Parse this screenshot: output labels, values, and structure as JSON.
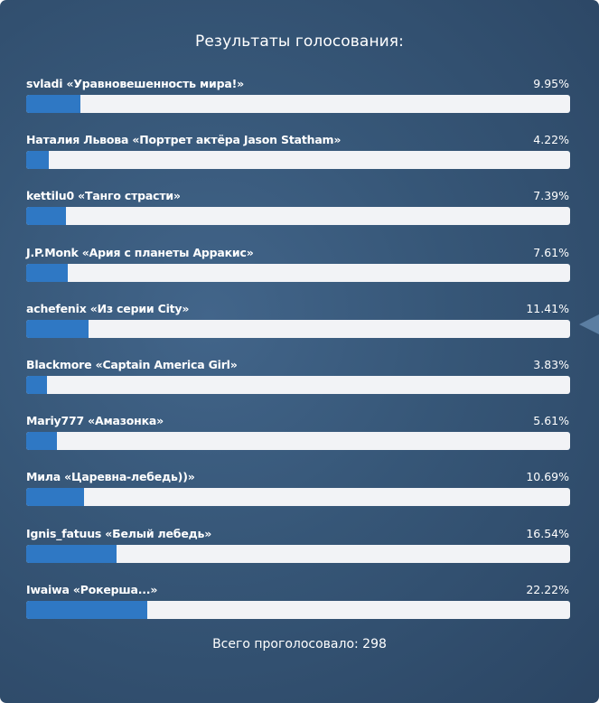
{
  "poll": {
    "title": "Результаты голосования:",
    "total_text": "Всего проголосовало: 298",
    "fill_color": "#2f78c4",
    "track_color": "#f2f3f6",
    "options": [
      {
        "label": "svladi «Уравновешенность мира!»",
        "percent_text": "9.95%",
        "percent": 9.95
      },
      {
        "label": "Наталия Львова «Портрет актёра Jason Statham»",
        "percent_text": "4.22%",
        "percent": 4.22
      },
      {
        "label": "kettilu0 «Танго страсти»",
        "percent_text": "7.39%",
        "percent": 7.39
      },
      {
        "label": "J.P.Monk «Ария с планеты Арракис»",
        "percent_text": "7.61%",
        "percent": 7.61
      },
      {
        "label": "achefenix «Из серии City»",
        "percent_text": "11.41%",
        "percent": 11.41
      },
      {
        "label": "Blackmore «Captain America Girl»",
        "percent_text": "3.83%",
        "percent": 3.83
      },
      {
        "label": "Mariy777 «Амазонка»",
        "percent_text": "5.61%",
        "percent": 5.61
      },
      {
        "label": "Мила «Царевна-лебедь))»",
        "percent_text": "10.69%",
        "percent": 10.69
      },
      {
        "label": "Ignis_fatuus «Белый лебедь»",
        "percent_text": "16.54%",
        "percent": 16.54
      },
      {
        "label": "Iwaiwa «Рокерша...»",
        "percent_text": "22.22%",
        "percent": 22.22
      }
    ]
  }
}
